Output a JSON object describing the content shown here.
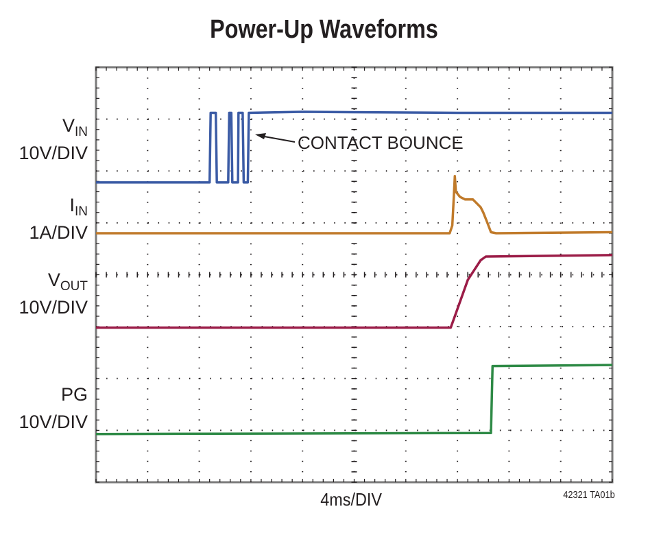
{
  "chart_data": {
    "type": "line",
    "title": "Power-Up Waveforms",
    "xlabel": "4ms/DIV",
    "figure_id": "42321 TA01b",
    "grid": true,
    "divisions": {
      "x": 10,
      "y": 8
    },
    "xlim_div": [
      0,
      10
    ],
    "ylim_div": [
      0,
      8
    ],
    "annotation": "CONTACT BOUNCE",
    "channels": [
      {
        "name": "V",
        "sub": "IN",
        "scale": "10V/DIV",
        "color": "#3b5ba5",
        "points": [
          [
            0,
            5.78
          ],
          [
            2.1,
            5.78
          ],
          [
            2.2,
            5.78
          ],
          [
            2.22,
            7.12
          ],
          [
            2.32,
            7.12
          ],
          [
            2.34,
            5.78
          ],
          [
            2.56,
            5.78
          ],
          [
            2.58,
            7.12
          ],
          [
            2.62,
            7.12
          ],
          [
            2.64,
            5.78
          ],
          [
            2.75,
            5.78
          ],
          [
            2.76,
            7.12
          ],
          [
            2.84,
            7.12
          ],
          [
            2.86,
            5.78
          ],
          [
            2.94,
            5.78
          ],
          [
            2.96,
            7.12
          ],
          [
            4.0,
            7.14
          ],
          [
            7.0,
            7.12
          ],
          [
            10,
            7.12
          ]
        ]
      },
      {
        "name": "I",
        "sub": "IN",
        "scale": "1A/DIV",
        "color": "#c07a2a",
        "points": [
          [
            0,
            4.8
          ],
          [
            6.85,
            4.8
          ],
          [
            6.9,
            4.95
          ],
          [
            6.93,
            5.5
          ],
          [
            6.95,
            5.9
          ],
          [
            6.97,
            5.6
          ],
          [
            7.05,
            5.5
          ],
          [
            7.15,
            5.45
          ],
          [
            7.3,
            5.45
          ],
          [
            7.45,
            5.3
          ],
          [
            7.5,
            5.2
          ],
          [
            7.58,
            5.0
          ],
          [
            7.65,
            4.82
          ],
          [
            7.75,
            4.8
          ],
          [
            10,
            4.82
          ]
        ]
      },
      {
        "name": "V",
        "sub": "OUT",
        "scale": "10V/DIV",
        "color": "#9b1c47",
        "points": [
          [
            0,
            2.98
          ],
          [
            6.87,
            2.98
          ],
          [
            6.95,
            3.2
          ],
          [
            7.2,
            3.9
          ],
          [
            7.45,
            4.28
          ],
          [
            7.55,
            4.35
          ],
          [
            10,
            4.38
          ]
        ]
      },
      {
        "name": "PG",
        "sub": "",
        "scale": "10V/DIV",
        "color": "#2e8a46",
        "points": [
          [
            0,
            0.93
          ],
          [
            7.65,
            0.95
          ],
          [
            7.68,
            2.24
          ],
          [
            10,
            2.26
          ]
        ]
      }
    ]
  }
}
